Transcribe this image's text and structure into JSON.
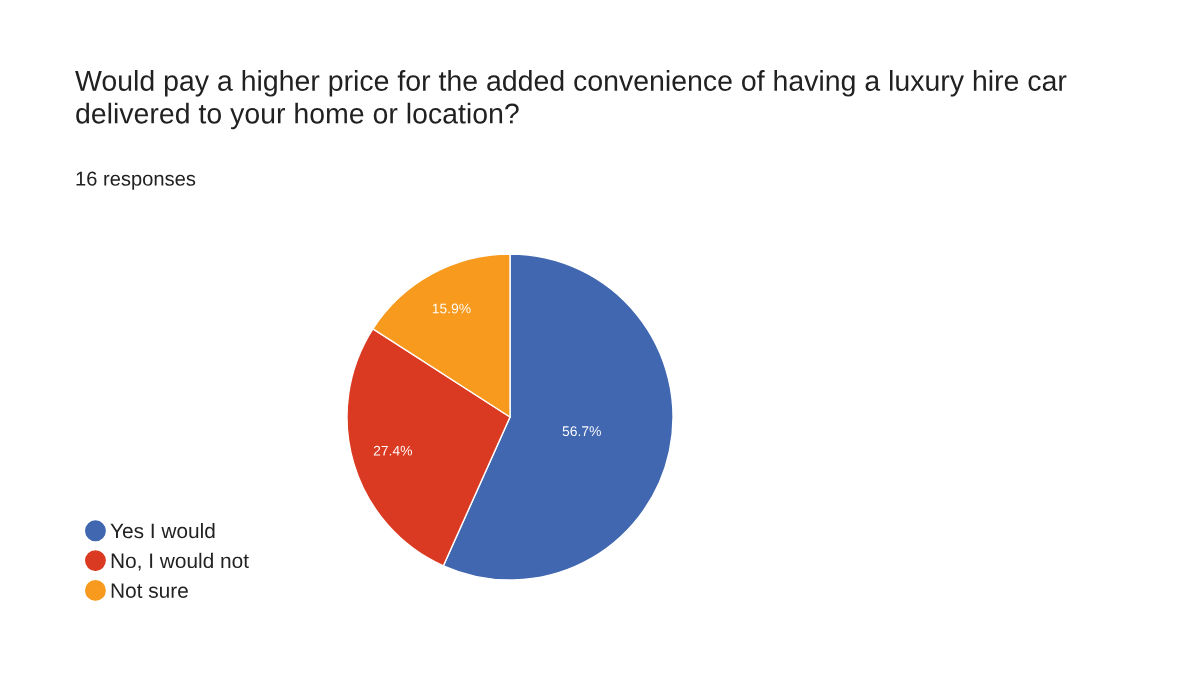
{
  "chart_data": {
    "type": "pie",
    "title": "Would pay a higher price for the added convenience of having a luxury hire car delivered to your home or location?",
    "subtitle": "16 responses",
    "categories": [
      "Yes I would",
      "No, I would not",
      "Not sure"
    ],
    "values": [
      56.7,
      27.4,
      15.9
    ],
    "colors": [
      "#4067b0",
      "#db3a22",
      "#f79a1e"
    ],
    "value_labels": [
      "56.7%",
      "27.4%",
      "15.9%"
    ],
    "legend": "bottom left"
  }
}
